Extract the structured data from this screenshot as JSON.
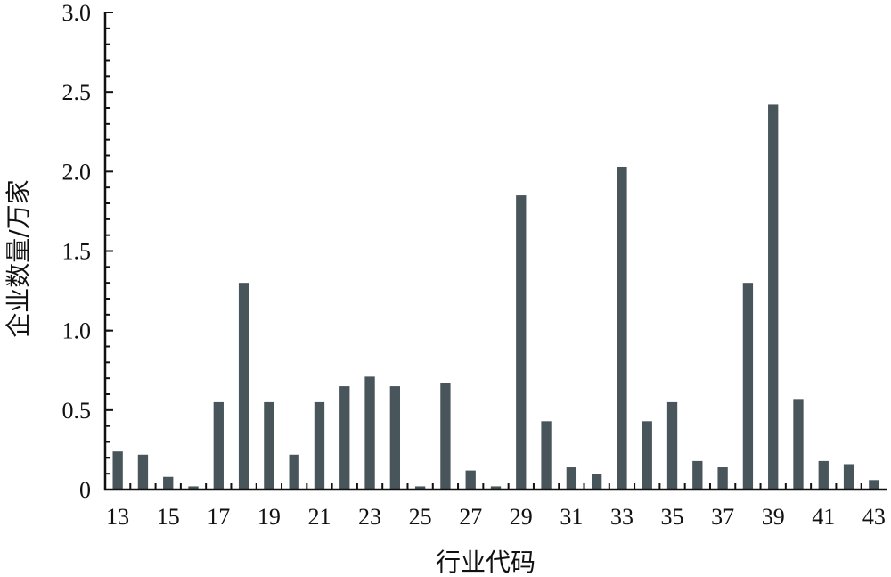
{
  "chart_data": {
    "type": "bar",
    "title": "",
    "xlabel": "行业代码",
    "ylabel": "企业数量/万家",
    "ylim": [
      0,
      3.0
    ],
    "yticks": [
      "0",
      "0.5",
      "1.0",
      "1.5",
      "2.0",
      "2.5",
      "3.0"
    ],
    "xtick_labels": [
      "13",
      "15",
      "17",
      "19",
      "21",
      "23",
      "25",
      "27",
      "29",
      "31",
      "33",
      "35",
      "37",
      "39",
      "41",
      "43"
    ],
    "grid": false,
    "legend": "none",
    "bar_color": "#48555b",
    "categories": [
      "13",
      "14",
      "15",
      "16",
      "17",
      "18",
      "19",
      "20",
      "21",
      "22",
      "23",
      "24",
      "25",
      "26",
      "27",
      "28",
      "29",
      "30",
      "31",
      "32",
      "33",
      "34",
      "35",
      "36",
      "37",
      "38",
      "39",
      "40",
      "41",
      "42",
      "43"
    ],
    "values": [
      0.24,
      0.22,
      0.08,
      0.02,
      0.55,
      1.3,
      0.55,
      0.22,
      0.55,
      0.65,
      0.71,
      0.65,
      0.02,
      0.67,
      0.12,
      0.02,
      1.85,
      0.43,
      0.14,
      0.1,
      2.03,
      0.43,
      0.55,
      0.18,
      0.14,
      1.3,
      2.42,
      0.57,
      0.18,
      0.16,
      0.06
    ]
  }
}
